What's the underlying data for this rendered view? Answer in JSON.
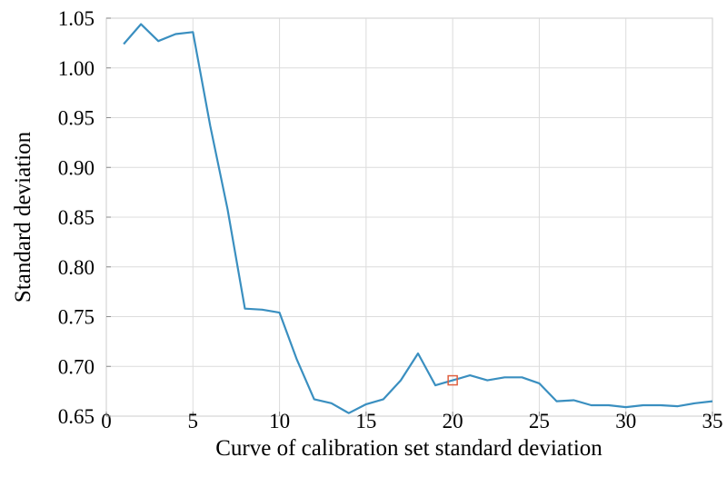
{
  "chart_data": {
    "type": "line",
    "title": "",
    "xlabel": "Curve of calibration set standard deviation",
    "ylabel": "Standard deviation",
    "xlim": [
      0,
      35
    ],
    "ylim": [
      0.65,
      1.05
    ],
    "x_ticks": [
      0,
      5,
      10,
      15,
      20,
      25,
      30,
      35
    ],
    "y_ticks": [
      0.65,
      0.7,
      0.75,
      0.8,
      0.85,
      0.9,
      0.95,
      1.0,
      1.05
    ],
    "x_tick_labels": [
      "0",
      "5",
      "10",
      "15",
      "20",
      "25",
      "30",
      "35"
    ],
    "y_tick_labels": [
      "0.65",
      "0.70",
      "0.75",
      "0.80",
      "0.85",
      "0.90",
      "0.95",
      "1.00",
      "1.05"
    ],
    "grid": true,
    "legend": "none",
    "series": [
      {
        "color": "#3a8fc0",
        "x": [
          1,
          2,
          3,
          4,
          5,
          6,
          7,
          8,
          9,
          10,
          11,
          12,
          13,
          14,
          15,
          16,
          17,
          18,
          19,
          20,
          21,
          22,
          23,
          24,
          25,
          26,
          27,
          28,
          29,
          30,
          31,
          32,
          33,
          34,
          35
        ],
        "y": [
          1.024,
          1.044,
          1.027,
          1.034,
          1.036,
          0.942,
          0.858,
          0.758,
          0.757,
          0.754,
          0.707,
          0.667,
          0.663,
          0.653,
          0.662,
          0.667,
          0.686,
          0.713,
          0.681,
          0.686,
          0.691,
          0.686,
          0.689,
          0.689,
          0.683,
          0.665,
          0.666,
          0.661,
          0.661,
          0.659,
          0.661,
          0.661,
          0.66,
          0.663,
          0.665
        ]
      }
    ],
    "annotations": [
      {
        "type": "marker",
        "shape": "square",
        "x": 20,
        "y": 0.686,
        "color": "#e06040"
      }
    ]
  }
}
